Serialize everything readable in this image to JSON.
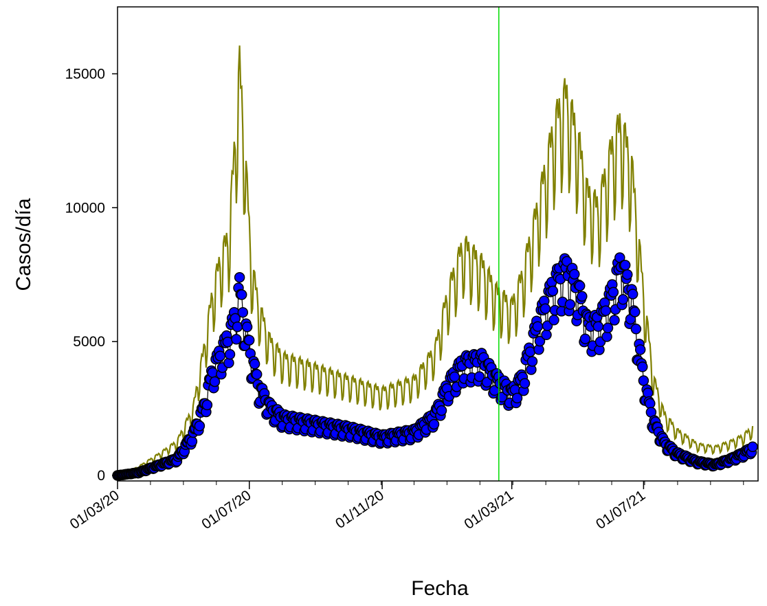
{
  "chart_data": {
    "type": "line",
    "xlabel": "Fecha",
    "ylabel": "Casos/día",
    "x_range": [
      "2020-03-01",
      "2021-10-15"
    ],
    "ylim": [
      0,
      17500
    ],
    "y_ticks": [
      0,
      5000,
      10000,
      15000
    ],
    "y_tick_labels": [
      "0",
      "5000",
      "10000",
      "15000"
    ],
    "x_ticks": [
      "2020-03-01",
      "2020-07-01",
      "2020-11-01",
      "2021-03-01",
      "2021-07-01"
    ],
    "x_tick_labels": [
      "01/03/20",
      "01/07/20",
      "01/11/20",
      "01/03/21",
      "01/07/21"
    ],
    "vertical_marker": {
      "date": "2021-02-17",
      "color": "#00dd00"
    },
    "grid": false,
    "legend": "none",
    "series": [
      {
        "style": "circle-markers",
        "color": "#0000ff",
        "anchors": [
          [
            "2020-03-01",
            0
          ],
          [
            "2020-03-20",
            100
          ],
          [
            "2020-04-10",
            400
          ],
          [
            "2020-04-25",
            600
          ],
          [
            "2020-05-10",
            1500
          ],
          [
            "2020-05-20",
            2500
          ],
          [
            "2020-05-28",
            3800
          ],
          [
            "2020-06-05",
            4500
          ],
          [
            "2020-06-12",
            5000
          ],
          [
            "2020-06-18",
            5800
          ],
          [
            "2020-06-22",
            6800
          ],
          [
            "2020-06-27",
            5500
          ],
          [
            "2020-07-03",
            4300
          ],
          [
            "2020-07-10",
            3200
          ],
          [
            "2020-07-20",
            2500
          ],
          [
            "2020-08-01",
            2100
          ],
          [
            "2020-09-01",
            1900
          ],
          [
            "2020-10-01",
            1700
          ],
          [
            "2020-11-01",
            1400
          ],
          [
            "2020-12-01",
            1600
          ],
          [
            "2020-12-20",
            2200
          ],
          [
            "2021-01-01",
            3300
          ],
          [
            "2021-01-15",
            4100
          ],
          [
            "2021-02-01",
            4200
          ],
          [
            "2021-02-15",
            3500
          ],
          [
            "2021-03-01",
            3000
          ],
          [
            "2021-03-10",
            3500
          ],
          [
            "2021-03-25",
            5500
          ],
          [
            "2021-04-10",
            7000
          ],
          [
            "2021-04-20",
            7500
          ],
          [
            "2021-05-01",
            6800
          ],
          [
            "2021-05-10",
            5500
          ],
          [
            "2021-05-20",
            5500
          ],
          [
            "2021-06-01",
            6500
          ],
          [
            "2021-06-10",
            7700
          ],
          [
            "2021-06-20",
            6500
          ],
          [
            "2021-07-01",
            3500
          ],
          [
            "2021-07-10",
            2000
          ],
          [
            "2021-07-20",
            1200
          ],
          [
            "2021-08-01",
            800
          ],
          [
            "2021-08-20",
            500
          ],
          [
            "2021-09-05",
            400
          ],
          [
            "2021-09-20",
            600
          ],
          [
            "2021-10-01",
            800
          ],
          [
            "2021-10-10",
            1000
          ]
        ]
      },
      {
        "style": "line",
        "color": "#808000",
        "anchors": [
          [
            "2020-03-01",
            0
          ],
          [
            "2020-03-20",
            300
          ],
          [
            "2020-04-10",
            800
          ],
          [
            "2020-04-25",
            1200
          ],
          [
            "2020-05-10",
            2400
          ],
          [
            "2020-05-20",
            4500
          ],
          [
            "2020-05-28",
            6500
          ],
          [
            "2020-06-05",
            7800
          ],
          [
            "2020-06-12",
            8500
          ],
          [
            "2020-06-18",
            12000
          ],
          [
            "2020-06-22",
            14500
          ],
          [
            "2020-06-27",
            11500
          ],
          [
            "2020-07-03",
            7500
          ],
          [
            "2020-07-10",
            6000
          ],
          [
            "2020-07-20",
            4800
          ],
          [
            "2020-08-01",
            4200
          ],
          [
            "2020-09-01",
            3800
          ],
          [
            "2020-10-01",
            3400
          ],
          [
            "2020-11-01",
            3000
          ],
          [
            "2020-12-01",
            3400
          ],
          [
            "2020-12-20",
            4500
          ],
          [
            "2021-01-01",
            6500
          ],
          [
            "2021-01-15",
            8200
          ],
          [
            "2021-02-01",
            7500
          ],
          [
            "2021-02-15",
            6500
          ],
          [
            "2021-03-01",
            6000
          ],
          [
            "2021-03-10",
            7000
          ],
          [
            "2021-03-25",
            9500
          ],
          [
            "2021-04-10",
            12500
          ],
          [
            "2021-04-20",
            13500
          ],
          [
            "2021-05-01",
            12000
          ],
          [
            "2021-05-10",
            10000
          ],
          [
            "2021-05-20",
            9500
          ],
          [
            "2021-06-01",
            11500
          ],
          [
            "2021-06-10",
            12500
          ],
          [
            "2021-06-20",
            11000
          ],
          [
            "2021-07-01",
            6500
          ],
          [
            "2021-07-10",
            3500
          ],
          [
            "2021-07-20",
            2200
          ],
          [
            "2021-08-01",
            1600
          ],
          [
            "2021-08-20",
            1100
          ],
          [
            "2021-09-05",
            1000
          ],
          [
            "2021-09-20",
            1200
          ],
          [
            "2021-10-01",
            1400
          ],
          [
            "2021-10-10",
            1700
          ]
        ]
      }
    ]
  }
}
